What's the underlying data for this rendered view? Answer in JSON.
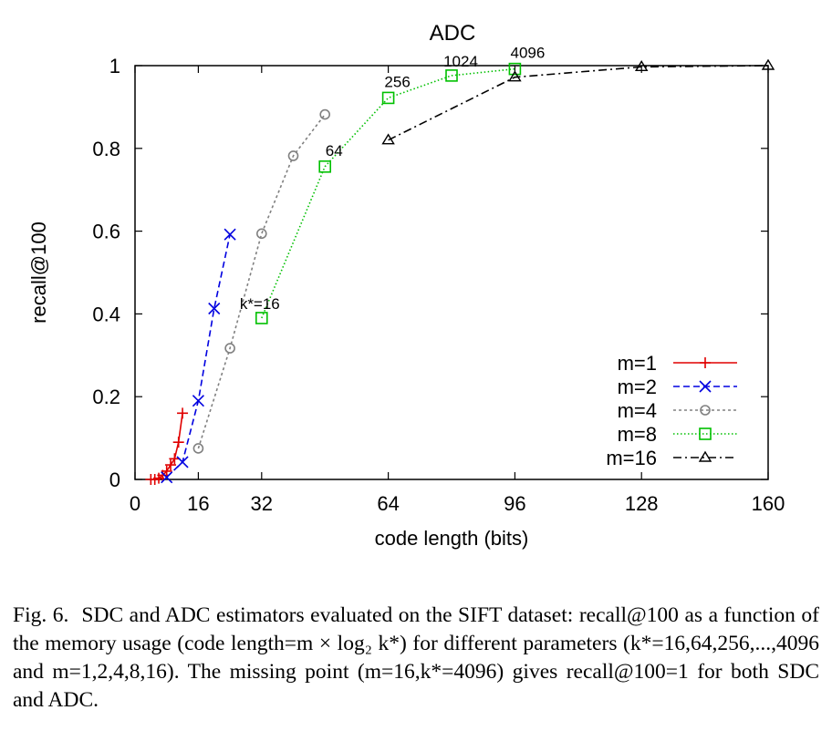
{
  "chart_data": {
    "type": "line",
    "title": "ADC",
    "xlabel": "code length (bits)",
    "ylabel": "recall@100",
    "xlim": [
      0,
      160
    ],
    "ylim": [
      0,
      1
    ],
    "xticks": [
      0,
      16,
      32,
      64,
      96,
      128,
      160
    ],
    "yticks": [
      0,
      0.2,
      0.4,
      0.6,
      0.8,
      1
    ],
    "ytick_labels": [
      "0",
      "0.2",
      "0.4",
      "0.6",
      "0.8",
      "1"
    ],
    "grid": false,
    "legend_position": "bottom-right",
    "series": [
      {
        "name": "m=1",
        "color": "#e00000",
        "dash": "",
        "marker": "plus",
        "x": [
          4,
          5,
          6,
          7,
          8,
          9,
          10,
          11,
          12
        ],
        "y": [
          0.0,
          0.0,
          0.003,
          0.01,
          0.02,
          0.035,
          0.05,
          0.09,
          0.16
        ]
      },
      {
        "name": "m=2",
        "color": "#0000e0",
        "dash": "7,4",
        "marker": "cross",
        "x": [
          8,
          12,
          16,
          20,
          24
        ],
        "y": [
          0.005,
          0.042,
          0.19,
          0.413,
          0.592
        ]
      },
      {
        "name": "m=4",
        "color": "#808080",
        "dash": "3,3",
        "marker": "circle",
        "x": [
          16,
          24,
          32,
          40,
          48
        ],
        "y": [
          0.075,
          0.317,
          0.594,
          0.782,
          0.882
        ]
      },
      {
        "name": "m=8",
        "color": "#00c000",
        "dash": "1.5,2.5",
        "marker": "square",
        "x": [
          32,
          48,
          64,
          80,
          96
        ],
        "y": [
          0.39,
          0.756,
          0.922,
          0.976,
          0.992
        ]
      },
      {
        "name": "m=16",
        "color": "#000000",
        "dash": "9,4,2,4",
        "marker": "triangle",
        "x": [
          64,
          96,
          128,
          160
        ],
        "y": [
          0.82,
          0.972,
          0.997,
          1.0
        ]
      }
    ],
    "annotations": [
      {
        "text": "k*=16",
        "x": 32,
        "y": 0.39
      },
      {
        "text": "64",
        "x": 48,
        "y": 0.756
      },
      {
        "text": "256",
        "x": 64,
        "y": 0.922
      },
      {
        "text": "1024",
        "x": 80,
        "y": 0.976
      },
      {
        "text": "4096",
        "x": 96,
        "y": 0.992
      }
    ]
  },
  "caption": {
    "label": "Fig. 6.",
    "text": "SDC and ADC estimators evaluated on the SIFT dataset: recall@100 as a function of the memory usage (code length=m × log₂ k*) for different parameters (k*=16,64,256,...,4096 and m=1,2,4,8,16). The missing point (m=16,k*=4096) gives recall@100=1 for both SDC and ADC."
  }
}
